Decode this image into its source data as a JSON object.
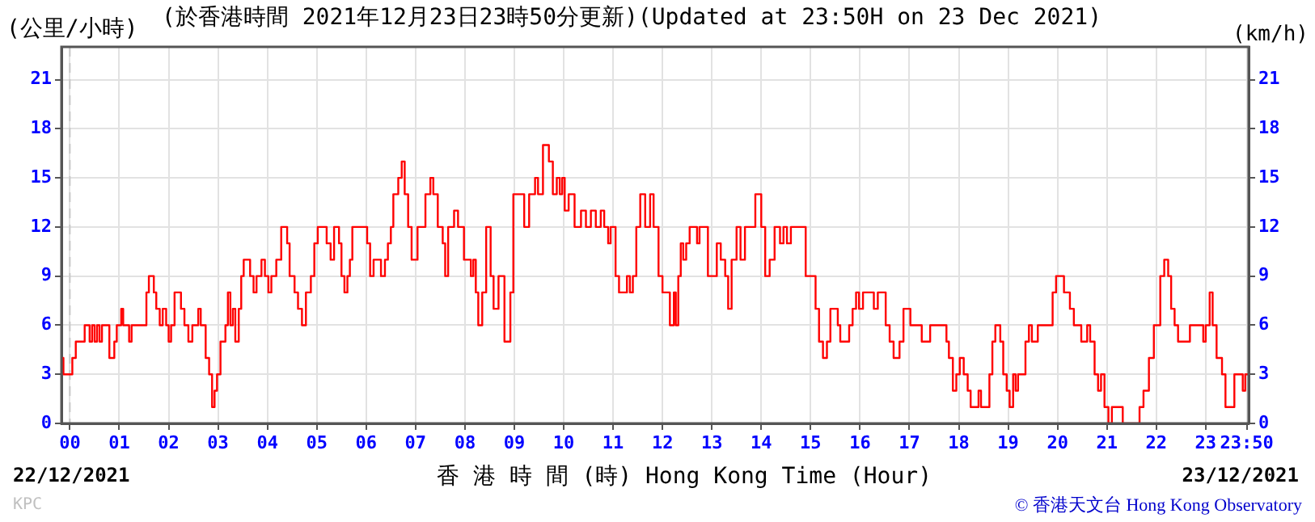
{
  "chart_data": {
    "type": "step",
    "title": "(於香港時間 2021年12月23日23時50分更新)(Updated at 23:50H on 23 Dec 2021)",
    "ylabel": "(公里/小時)",
    "y2label": "(km/h)",
    "xlabel": "香 港 時 間 (時) Hong Kong Time (Hour)",
    "annotations": [
      "22/12/2021",
      "23/12/2021",
      "KPC",
      "© 香港天文台 Hong Kong Observatory"
    ],
    "xlim": [
      -0.17,
      23.87
    ],
    "xticks": [
      {
        "value": 0,
        "label": "00"
      },
      {
        "value": 1,
        "label": "01"
      },
      {
        "value": 2,
        "label": "02"
      },
      {
        "value": 3,
        "label": "03"
      },
      {
        "value": 4,
        "label": "04"
      },
      {
        "value": 5,
        "label": "05"
      },
      {
        "value": 6,
        "label": "06"
      },
      {
        "value": 7,
        "label": "07"
      },
      {
        "value": 8,
        "label": "08"
      },
      {
        "value": 9,
        "label": "09"
      },
      10,
      11,
      12,
      13,
      14,
      15,
      16,
      17,
      18,
      19,
      20,
      21,
      22,
      23,
      {
        "value": 23.833,
        "label": "23:50"
      }
    ],
    "ylim": [
      0,
      23
    ],
    "yticks": [
      0,
      3,
      6,
      9,
      12,
      15,
      18,
      21
    ],
    "y2lim": [
      0,
      23
    ],
    "y2ticks": [
      0,
      3,
      6,
      9,
      12,
      15,
      18,
      21
    ],
    "grid": true,
    "legend": false,
    "marker": "none",
    "line_style": "solid",
    "ref_lines": [
      {
        "axis": "x",
        "value": 0,
        "color": "#c8c8c8",
        "line_style": "dashed"
      }
    ],
    "series": [
      {
        "color": "#ff0000",
        "x": [
          -0.17,
          -0.13,
          0.05,
          0.12,
          0.3,
          0.4,
          0.45,
          0.5,
          0.55,
          0.6,
          0.65,
          0.8,
          0.9,
          0.95,
          1.04,
          1.08,
          1.2,
          1.25,
          1.55,
          1.6,
          1.7,
          1.75,
          1.82,
          1.88,
          1.95,
          2.0,
          2.05,
          2.12,
          2.25,
          2.32,
          2.4,
          2.48,
          2.6,
          2.65,
          2.75,
          2.82,
          2.88,
          2.93,
          2.98,
          3.05,
          3.15,
          3.2,
          3.25,
          3.3,
          3.35,
          3.42,
          3.47,
          3.52,
          3.65,
          3.72,
          3.78,
          3.88,
          3.95,
          4.02,
          4.08,
          4.18,
          4.28,
          4.4,
          4.45,
          4.55,
          4.62,
          4.7,
          4.78,
          4.88,
          4.95,
          5.02,
          5.2,
          5.28,
          5.35,
          5.45,
          5.5,
          5.56,
          5.62,
          5.67,
          5.72,
          6.02,
          6.08,
          6.15,
          6.3,
          6.38,
          6.44,
          6.5,
          6.55,
          6.65,
          6.72,
          6.78,
          6.85,
          6.92,
          7.04,
          7.2,
          7.3,
          7.36,
          7.45,
          7.55,
          7.6,
          7.66,
          7.78,
          7.86,
          7.98,
          8.12,
          8.17,
          8.22,
          8.27,
          8.35,
          8.43,
          8.52,
          8.58,
          8.68,
          8.8,
          8.92,
          8.98,
          9.2,
          9.3,
          9.42,
          9.48,
          9.58,
          9.7,
          9.78,
          9.86,
          9.92,
          9.97,
          10.02,
          10.1,
          10.22,
          10.35,
          10.45,
          10.55,
          10.65,
          10.75,
          10.82,
          10.9,
          10.95,
          11.05,
          11.12,
          11.28,
          11.34,
          11.4,
          11.47,
          11.55,
          11.65,
          11.75,
          11.82,
          11.92,
          12.0,
          12.15,
          12.23,
          12.27,
          12.32,
          12.37,
          12.42,
          12.48,
          12.55,
          12.7,
          12.75,
          12.92,
          13.1,
          13.18,
          13.27,
          13.33,
          13.4,
          13.5,
          13.58,
          13.67,
          13.88,
          14.0,
          14.08,
          14.17,
          14.27,
          14.38,
          14.45,
          14.52,
          14.6,
          14.9,
          15.1,
          15.17,
          15.25,
          15.33,
          15.4,
          15.55,
          15.6,
          15.78,
          15.85,
          15.92,
          15.98,
          16.06,
          16.28,
          16.36,
          16.52,
          16.6,
          16.68,
          16.8,
          16.88,
          17.02,
          17.25,
          17.42,
          17.75,
          17.8,
          17.88,
          17.95,
          18.02,
          18.1,
          18.18,
          18.24,
          18.4,
          18.45,
          18.62,
          18.68,
          18.74,
          18.84,
          18.9,
          18.97,
          19.03,
          19.1,
          19.15,
          19.2,
          19.35,
          19.42,
          19.48,
          19.6,
          19.9,
          19.97,
          20.13,
          20.25,
          20.33,
          20.48,
          20.6,
          20.66,
          20.75,
          20.82,
          20.88,
          20.95,
          21.03,
          21.1,
          21.32,
          21.66,
          21.74,
          21.85,
          21.95,
          22.08,
          22.16,
          22.24,
          22.3,
          22.37,
          22.44,
          22.68,
          22.95,
          23.0,
          23.08,
          23.14,
          23.22,
          23.33,
          23.4,
          23.58,
          23.75,
          23.8,
          23.87
        ],
        "values": [
          4,
          3,
          4,
          5,
          6,
          5,
          6,
          5,
          6,
          5,
          6,
          4,
          5,
          6,
          7,
          6,
          5,
          6,
          8,
          9,
          8,
          7,
          6,
          7,
          6,
          5,
          6,
          8,
          7,
          6,
          5,
          6,
          7,
          6,
          4,
          3,
          1,
          2,
          3,
          5,
          6,
          8,
          6,
          7,
          5,
          7,
          9,
          10,
          9,
          8,
          9,
          10,
          9,
          8,
          9,
          10,
          12,
          11,
          9,
          8,
          7,
          6,
          8,
          9,
          11,
          12,
          11,
          10,
          12,
          11,
          9,
          8,
          9,
          10,
          12,
          11,
          9,
          10,
          9,
          10,
          11,
          12,
          14,
          15,
          16,
          14,
          12,
          10,
          12,
          14,
          15,
          14,
          12,
          11,
          9,
          12,
          13,
          12,
          10,
          9,
          10,
          8,
          6,
          8,
          12,
          9,
          7,
          9,
          5,
          8,
          14,
          12,
          14,
          15,
          14,
          17,
          16,
          14,
          15,
          14,
          15,
          13,
          14,
          12,
          13,
          12,
          13,
          12,
          13,
          12,
          11,
          12,
          9,
          8,
          9,
          8,
          9,
          12,
          14,
          12,
          14,
          12,
          9,
          8,
          6,
          8,
          6,
          9,
          11,
          10,
          11,
          12,
          11,
          12,
          9,
          11,
          10,
          9,
          7,
          10,
          12,
          10,
          12,
          14,
          12,
          9,
          10,
          12,
          11,
          12,
          11,
          12,
          9,
          7,
          5,
          4,
          5,
          7,
          6,
          5,
          6,
          7,
          8,
          7,
          8,
          7,
          8,
          6,
          5,
          4,
          5,
          7,
          6,
          5,
          6,
          5,
          4,
          2,
          3,
          4,
          3,
          2,
          1,
          2,
          1,
          3,
          5,
          6,
          5,
          3,
          2,
          1,
          3,
          2,
          3,
          5,
          6,
          5,
          6,
          8,
          9,
          8,
          7,
          6,
          5,
          6,
          5,
          3,
          2,
          3,
          1,
          0,
          1,
          0,
          1,
          2,
          4,
          6,
          9,
          10,
          9,
          7,
          6,
          5,
          6,
          5,
          6,
          8,
          6,
          4,
          3,
          1,
          3,
          2,
          3,
          3
        ]
      }
    ]
  }
}
